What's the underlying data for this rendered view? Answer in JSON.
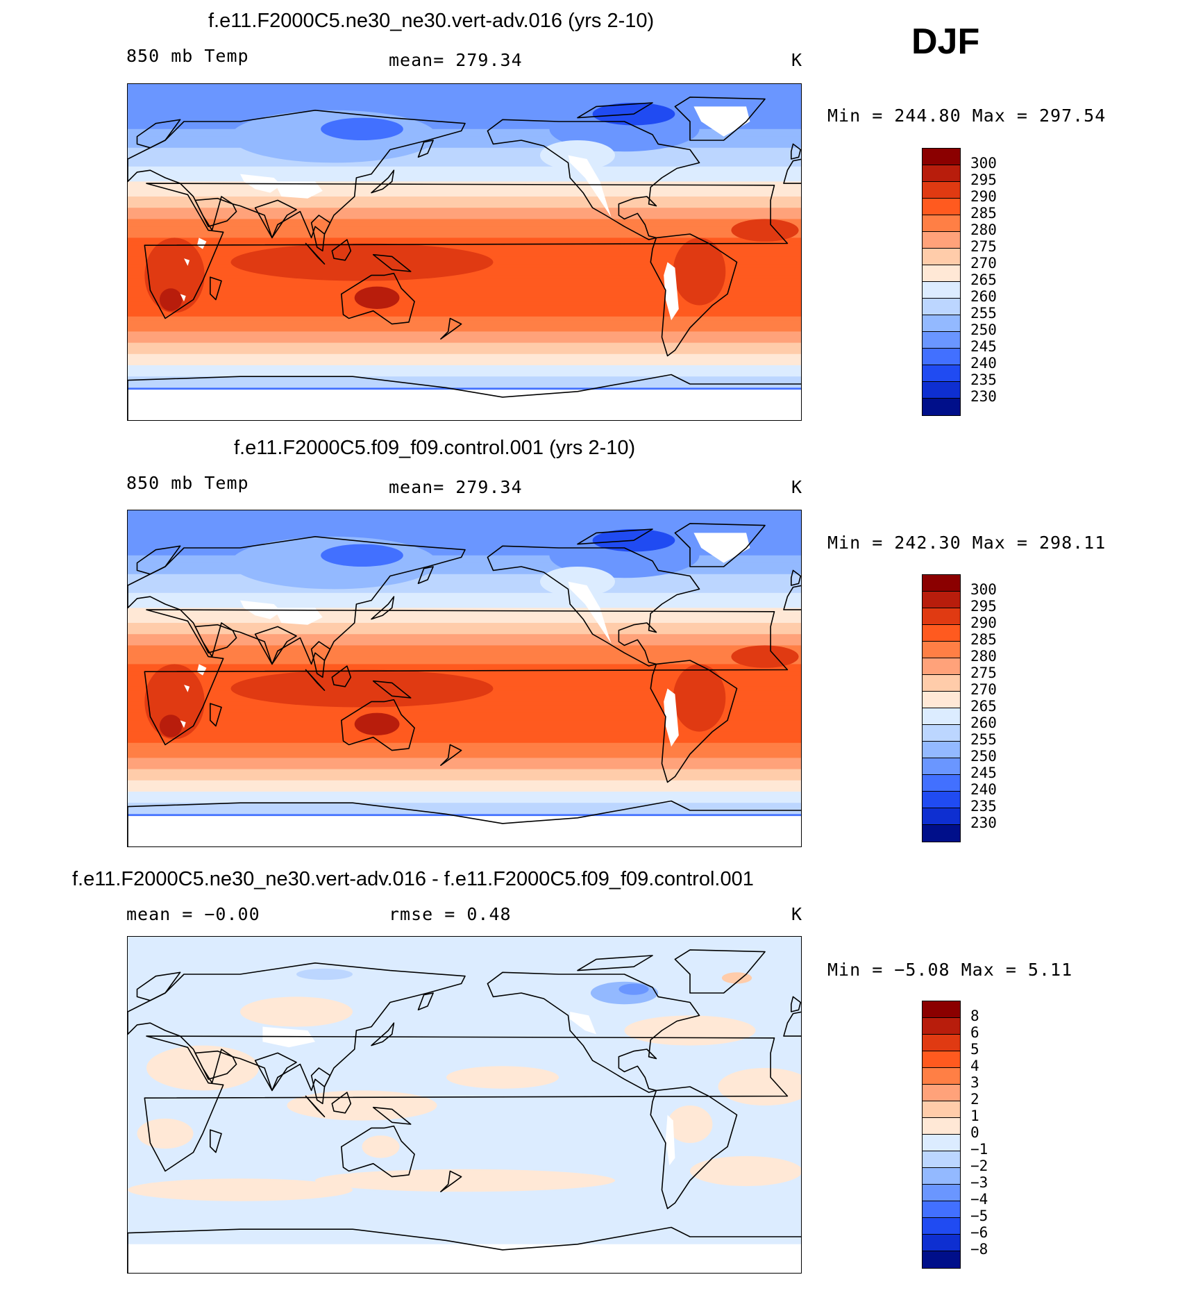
{
  "season": "DJF",
  "palette": [
    "#8b0000",
    "#b81d0c",
    "#e03a12",
    "#ff5a1f",
    "#ff7f45",
    "#ffa27a",
    "#ffccaa",
    "#ffe8d6",
    "#dcecff",
    "#bcd6ff",
    "#93b9ff",
    "#6a96ff",
    "#4270ff",
    "#204bf2",
    "#0e2fd1",
    "#000f8a"
  ],
  "panels": [
    {
      "title": "f.e11.F2000C5.ne30_ne30.vert-adv.016 (yrs 2-10)",
      "left_label": "850 mb Temp",
      "center_label": "mean=  279.34",
      "unit": "K",
      "minmax": "Min  =  244.80  Max  =  297.54",
      "levels": [
        "300",
        "295",
        "290",
        "285",
        "280",
        "275",
        "270",
        "265",
        "260",
        "255",
        "250",
        "245",
        "240",
        "235",
        "230"
      ],
      "field": "abs"
    },
    {
      "title": "f.e11.F2000C5.f09_f09.control.001 (yrs 2-10)",
      "left_label": "850 mb Temp",
      "center_label": "mean=  279.34",
      "unit": "K",
      "minmax": "Min  =  242.30  Max  =  298.11",
      "levels": [
        "300",
        "295",
        "290",
        "285",
        "280",
        "275",
        "270",
        "265",
        "260",
        "255",
        "250",
        "245",
        "240",
        "235",
        "230"
      ],
      "field": "abs"
    },
    {
      "title": "f.e11.F2000C5.ne30_ne30.vert-adv.016 - f.e11.F2000C5.f09_f09.control.001",
      "left_label": "mean  =   −0.00",
      "center_label": "rmse  =    0.48",
      "unit": "K",
      "minmax": "Min  =   −5.08  Max  =    5.11",
      "levels": [
        "8",
        "6",
        "5",
        "4",
        "3",
        "2",
        "1",
        "0",
        "−1",
        "−2",
        "−3",
        "−4",
        "−5",
        "−6",
        "−8"
      ],
      "field": "diff"
    }
  ]
}
